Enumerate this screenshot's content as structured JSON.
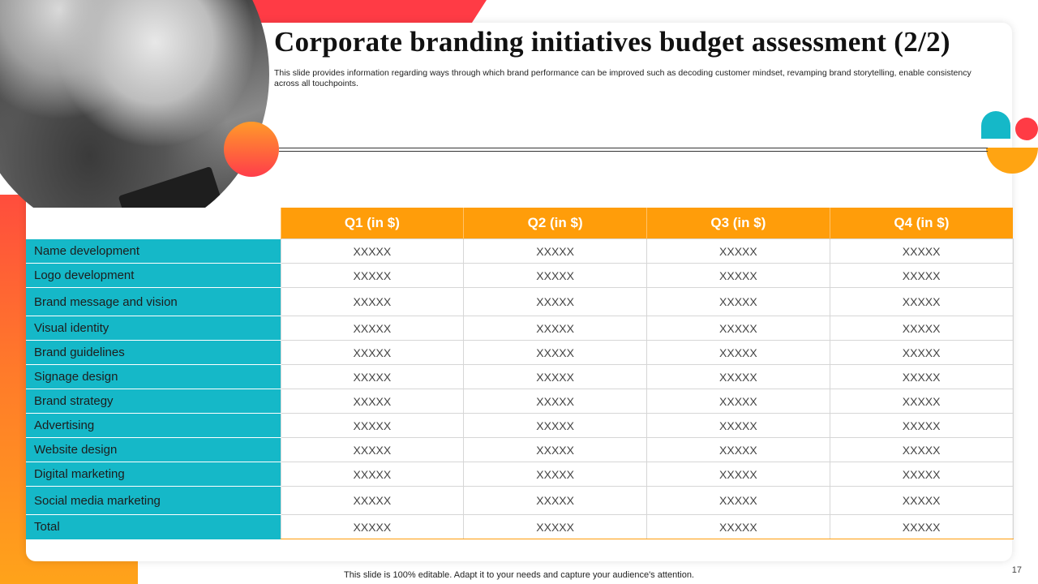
{
  "slide": {
    "title": "Corporate branding initiatives budget assessment  (2/2)",
    "subtitle": "This slide provides information regarding ways through which brand performance can be improved such as decoding customer mindset, revamping brand storytelling, enable consistency across all touchpoints.",
    "footer": "This slide is 100% editable. Adapt it to your needs and capture your audience's attention.",
    "page_number": "17"
  },
  "table": {
    "headers": [
      "",
      "Q1 (in $)",
      "Q2 (in $)",
      "Q3 (in $)",
      "Q4 (in $)"
    ],
    "rows": [
      {
        "label": "Name development",
        "values": [
          "XXXXX",
          "XXXXX",
          "XXXXX",
          "XXXXX"
        ]
      },
      {
        "label": "Logo development",
        "values": [
          "XXXXX",
          "XXXXX",
          "XXXXX",
          "XXXXX"
        ]
      },
      {
        "label": "Brand message and vision",
        "values": [
          "XXXXX",
          "XXXXX",
          "XXXXX",
          "XXXXX"
        ]
      },
      {
        "label": "Visual identity",
        "values": [
          "XXXXX",
          "XXXXX",
          "XXXXX",
          "XXXXX"
        ]
      },
      {
        "label": "Brand guidelines",
        "values": [
          "XXXXX",
          "XXXXX",
          "XXXXX",
          "XXXXX"
        ]
      },
      {
        "label": "Signage design",
        "values": [
          "XXXXX",
          "XXXXX",
          "XXXXX",
          "XXXXX"
        ]
      },
      {
        "label": "Brand strategy",
        "values": [
          "XXXXX",
          "XXXXX",
          "XXXXX",
          "XXXXX"
        ]
      },
      {
        "label": "Advertising",
        "values": [
          "XXXXX",
          "XXXXX",
          "XXXXX",
          "XXXXX"
        ]
      },
      {
        "label": "Website design",
        "values": [
          "XXXXX",
          "XXXXX",
          "XXXXX",
          "XXXXX"
        ]
      },
      {
        "label": "Digital marketing",
        "values": [
          "XXXXX",
          "XXXXX",
          "XXXXX",
          "XXXXX"
        ]
      },
      {
        "label": "Social media marketing",
        "values": [
          "XXXXX",
          "XXXXX",
          "XXXXX",
          "XXXXX"
        ]
      },
      {
        "label": "Total",
        "values": [
          "XXXXX",
          "XXXXX",
          "XXXXX",
          "XXXXX"
        ]
      }
    ]
  },
  "colors": {
    "accent_orange": "#ff9d0a",
    "accent_teal": "#15b8c8",
    "accent_red": "#ff3b45"
  }
}
